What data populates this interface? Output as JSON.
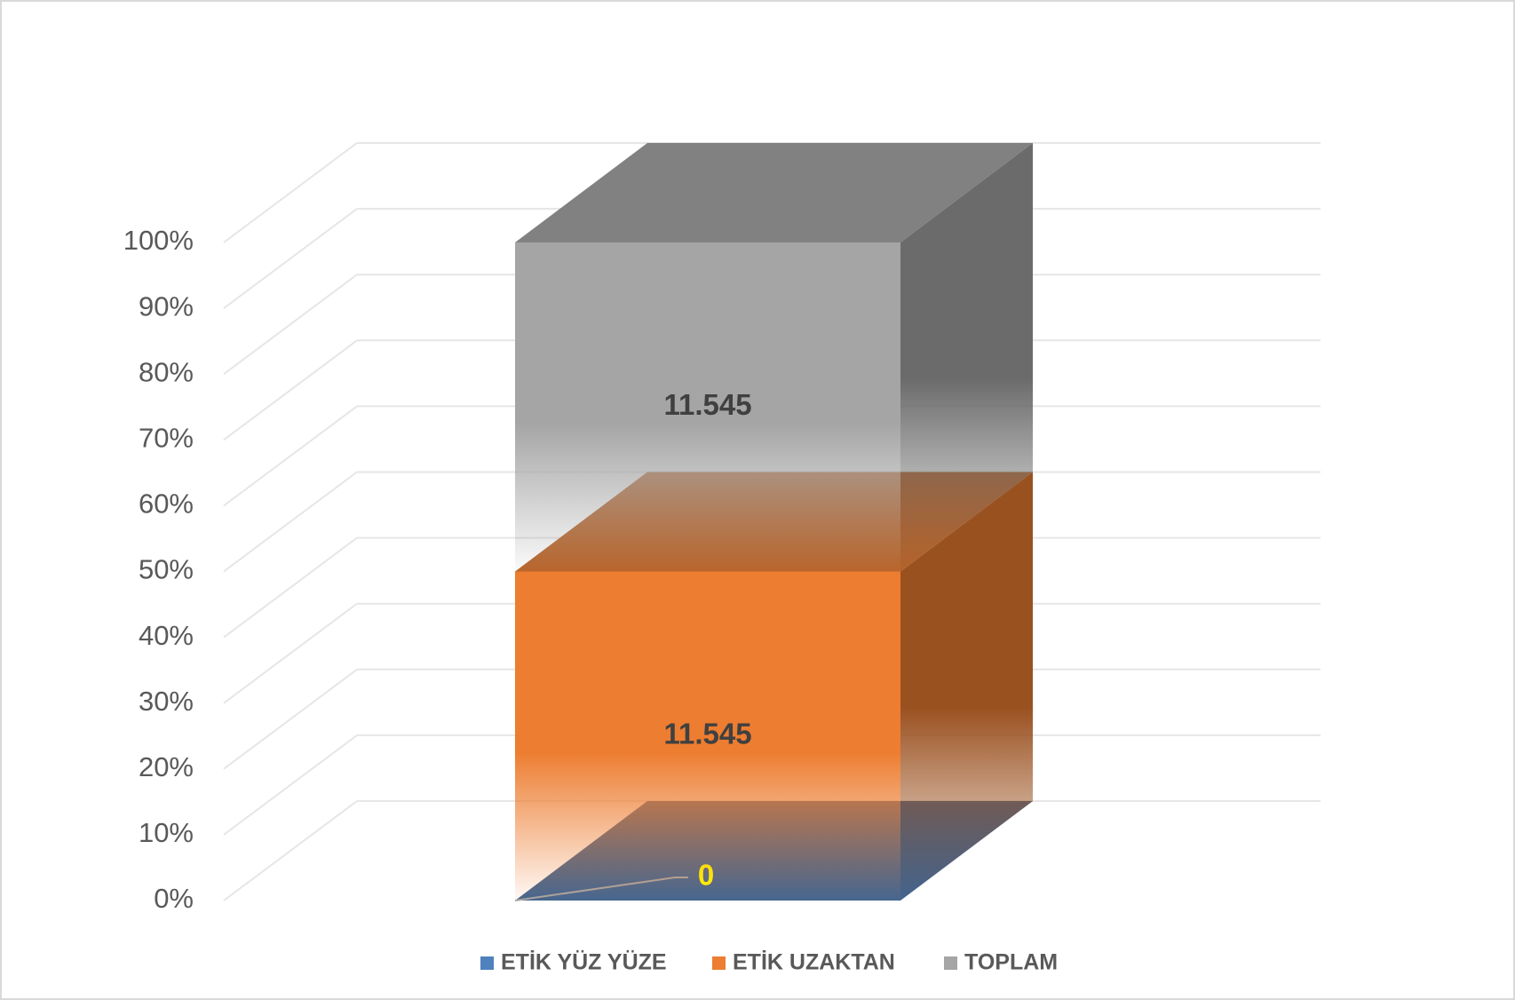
{
  "chart_data": {
    "type": "bar3d_stacked_percent",
    "ylim": [
      0,
      100
    ],
    "yticks": [
      {
        "value": 0,
        "label": "0%"
      },
      {
        "value": 10,
        "label": "10%"
      },
      {
        "value": 20,
        "label": "20%"
      },
      {
        "value": 30,
        "label": "30%"
      },
      {
        "value": 40,
        "label": "40%"
      },
      {
        "value": 50,
        "label": "50%"
      },
      {
        "value": 60,
        "label": "60%"
      },
      {
        "value": 70,
        "label": "70%"
      },
      {
        "value": 80,
        "label": "80%"
      },
      {
        "value": 90,
        "label": "90%"
      },
      {
        "value": 100,
        "label": "100%"
      }
    ],
    "grid": true,
    "legend": "bottom",
    "series": [
      {
        "name": "ETİK YÜZ YÜZE",
        "color": "#4f81bd",
        "label_color": "#ffff00",
        "values": [
          0
        ]
      },
      {
        "name": "ETİK UZAKTAN",
        "color": "#ed7d31",
        "label_color": "#404040",
        "values": [
          11545
        ],
        "value_labels": [
          "11.545"
        ]
      },
      {
        "name": "TOPLAM",
        "color": "#a5a5a5",
        "label_color": "#404040",
        "values": [
          11545
        ],
        "value_labels": [
          "11.545"
        ]
      }
    ]
  }
}
